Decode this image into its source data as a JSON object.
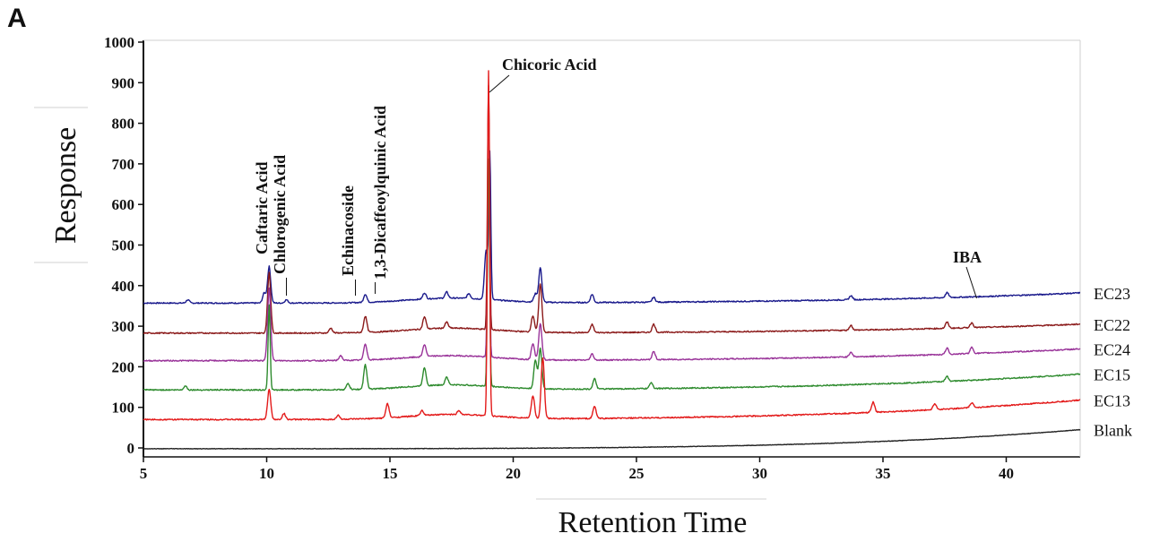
{
  "panel_label": "A",
  "chart_data": {
    "type": "line",
    "xlabel": "Retention Time",
    "ylabel": "Response",
    "xlim": [
      5,
      43
    ],
    "ylim": [
      -20,
      1010
    ],
    "x_ticks": [
      5,
      10,
      15,
      20,
      25,
      30,
      35,
      40
    ],
    "y_ticks": [
      0,
      100,
      200,
      300,
      400,
      500,
      600,
      700,
      800,
      900,
      1000
    ],
    "grid": false,
    "peak_labels": [
      {
        "text": "Caftaric Acid",
        "x": 10.1
      },
      {
        "text": "Chlorogenic Acid",
        "x": 10.8
      },
      {
        "text": "Echinacoside",
        "x": 13.6
      },
      {
        "text": "1,3-Dicaffeoylquinic Acid",
        "x": 14.4
      },
      {
        "text": "Chicoric Acid",
        "x": 19.0
      },
      {
        "text": "IBA",
        "x": 38.8
      }
    ],
    "series": [
      {
        "name": "EC23",
        "color": "#1a1a8c",
        "baseline": 357,
        "end": 382,
        "peaks": [
          [
            6.8,
            8
          ],
          [
            9.9,
            25
          ],
          [
            10.1,
            90
          ],
          [
            10.8,
            8
          ],
          [
            14.0,
            20
          ],
          [
            16.4,
            15
          ],
          [
            17.3,
            15
          ],
          [
            18.2,
            12
          ],
          [
            18.9,
            120
          ],
          [
            19.05,
            360
          ],
          [
            20.9,
            20
          ],
          [
            21.1,
            85
          ],
          [
            23.2,
            20
          ],
          [
            25.7,
            12
          ],
          [
            33.7,
            10
          ],
          [
            37.6,
            12
          ]
        ]
      },
      {
        "name": "EC22",
        "color": "#8b1a1a",
        "baseline": 283,
        "end": 305,
        "peaks": [
          [
            10.1,
            150
          ],
          [
            12.6,
            12
          ],
          [
            14.0,
            40
          ],
          [
            16.4,
            30
          ],
          [
            17.3,
            15
          ],
          [
            19.0,
            600
          ],
          [
            20.8,
            40
          ],
          [
            21.1,
            120
          ],
          [
            23.2,
            20
          ],
          [
            25.7,
            20
          ],
          [
            33.7,
            12
          ],
          [
            37.6,
            15
          ],
          [
            38.6,
            12
          ]
        ]
      },
      {
        "name": "EC24",
        "color": "#993399",
        "baseline": 215,
        "end": 244,
        "peaks": [
          [
            10.1,
            180
          ],
          [
            13.0,
            12
          ],
          [
            14.0,
            40
          ],
          [
            16.4,
            30
          ],
          [
            19.0,
            480
          ],
          [
            20.8,
            40
          ],
          [
            21.1,
            90
          ],
          [
            23.2,
            15
          ],
          [
            25.7,
            20
          ],
          [
            33.7,
            12
          ],
          [
            37.6,
            15
          ],
          [
            38.6,
            15
          ]
        ]
      },
      {
        "name": "EC15",
        "color": "#2e8b2e",
        "baseline": 143,
        "end": 182,
        "peaks": [
          [
            6.7,
            10
          ],
          [
            10.1,
            210
          ],
          [
            13.3,
            15
          ],
          [
            14.0,
            60
          ],
          [
            16.4,
            45
          ],
          [
            17.3,
            20
          ],
          [
            19.0,
            560
          ],
          [
            20.9,
            70
          ],
          [
            21.1,
            100
          ],
          [
            23.3,
            25
          ],
          [
            25.6,
            15
          ],
          [
            37.6,
            12
          ]
        ]
      },
      {
        "name": "EC13",
        "color": "#e31a1a",
        "baseline": 70,
        "end": 118,
        "peaks": [
          [
            10.1,
            75
          ],
          [
            10.7,
            15
          ],
          [
            12.9,
            10
          ],
          [
            14.9,
            35
          ],
          [
            16.3,
            12
          ],
          [
            17.8,
            10
          ],
          [
            19.0,
            850
          ],
          [
            20.8,
            55
          ],
          [
            21.2,
            150
          ],
          [
            23.3,
            30
          ],
          [
            34.6,
            25
          ],
          [
            37.1,
            15
          ],
          [
            38.6,
            12
          ]
        ]
      },
      {
        "name": "Blank",
        "color": "#222222",
        "baseline": -2,
        "end": 45,
        "peaks": []
      }
    ]
  }
}
